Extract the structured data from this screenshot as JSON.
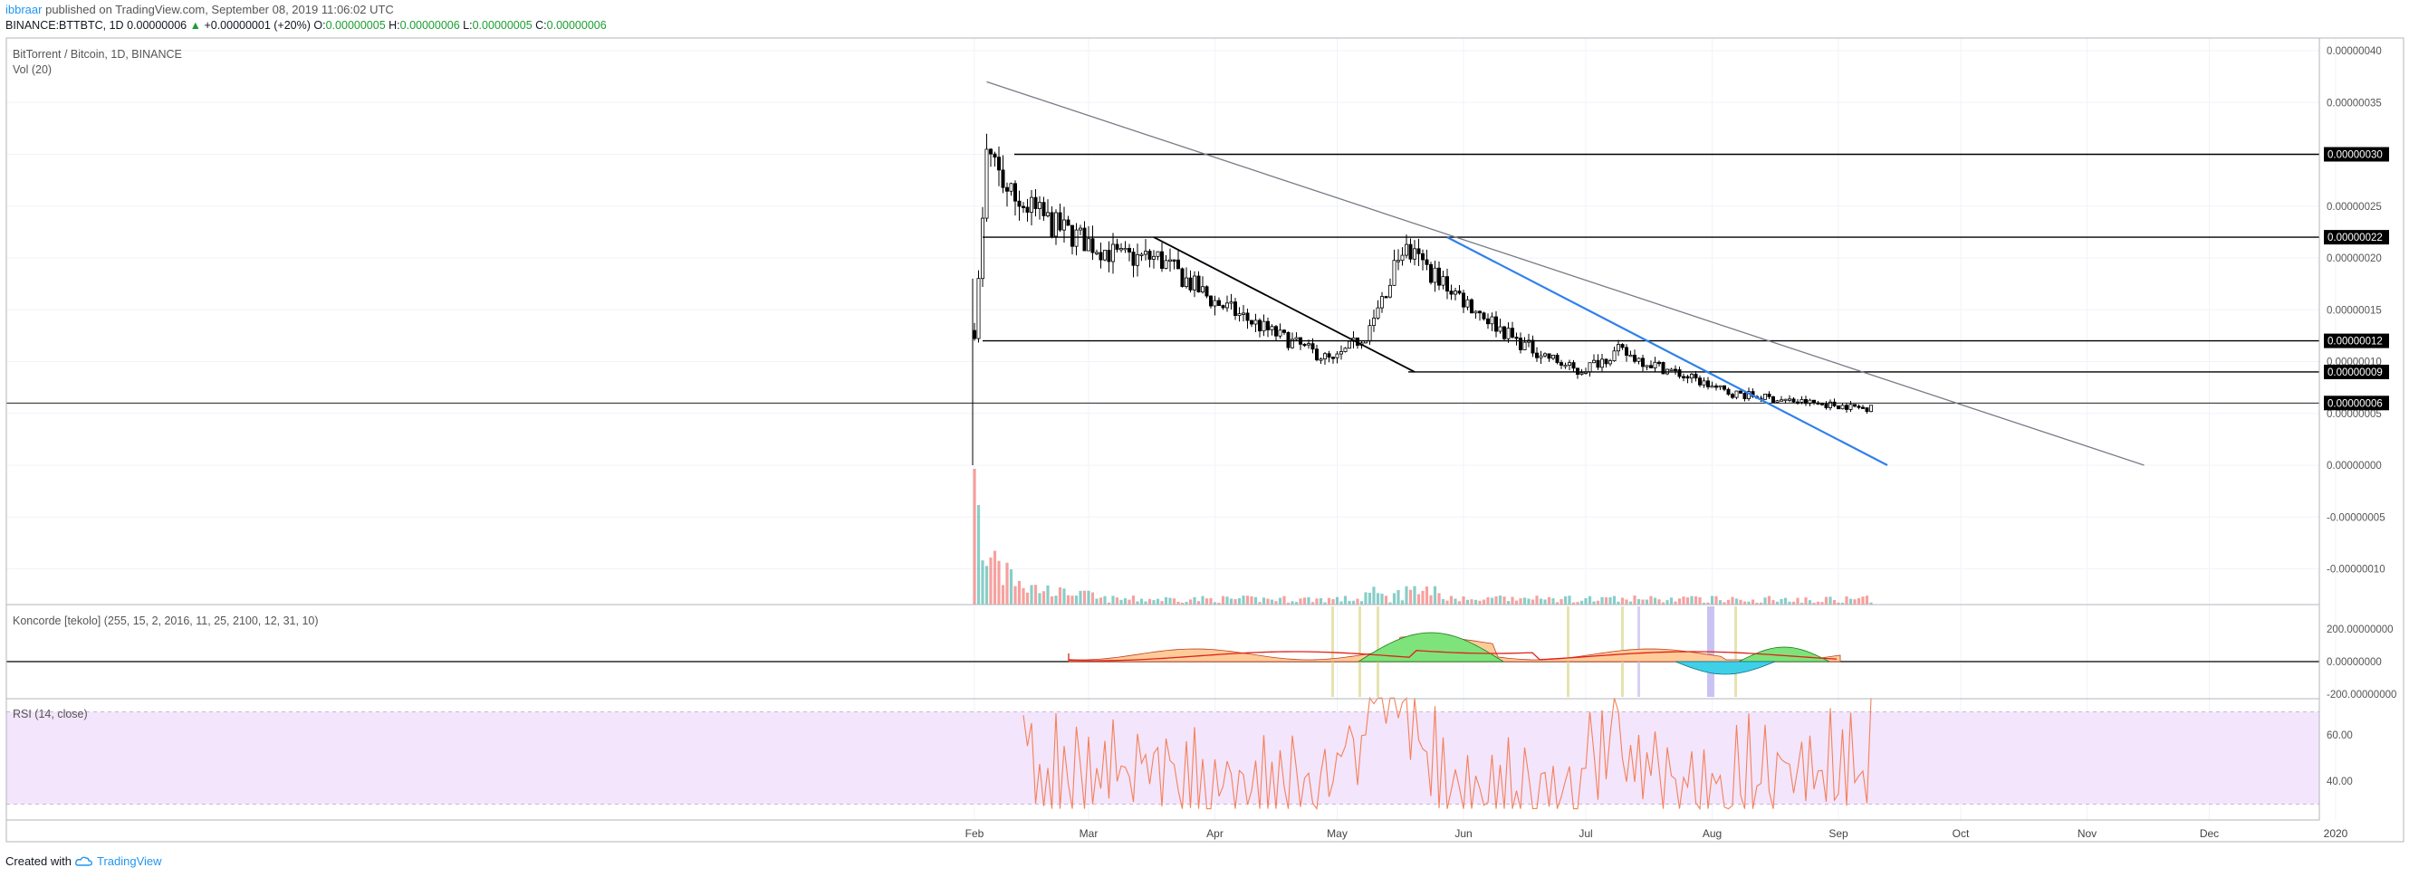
{
  "header": {
    "user": "ibbraar",
    "published_text": "published on TradingView.com, September 08, 2019 11:06:02 UTC",
    "symbol": "BINANCE:BTTBTC, 1D",
    "last": "0.00000006",
    "change_arrow": "▲",
    "change": "+0.00000001 (+20%)",
    "o_label": "O:",
    "o_value": "0.00000005",
    "h_label": "H:",
    "h_value": "0.00000006",
    "l_label": "L:",
    "l_value": "0.00000005",
    "c_label": "C:",
    "c_value": "0.00000006"
  },
  "panes": {
    "main_title": "BitTorrent / Bitcoin, 1D, BINANCE",
    "vol_title": "Vol (20)",
    "koncorde_title": "Koncorde [tekolo] (255, 15, 2, 2016, 11, 25, 2100, 12, 31, 10)",
    "rsi_title": "RSI (14, close)"
  },
  "footer": {
    "created_with": "Created with",
    "brand": "TradingView",
    "logo_icon": "tradingview-cloud-icon"
  },
  "colors": {
    "up": "#26a69a",
    "down": "#ef5350",
    "candle": "#000000",
    "blue_trend": "#2f80ed",
    "gray_trend": "#787b86",
    "rsi_line": "#f4805a",
    "rsi_band": "#f3e5fb",
    "konc_brown": "#ffcc99",
    "konc_green": "#7ee37a",
    "konc_blue": "#3fd0e8",
    "badge_bg": "#000000",
    "header_green": "#1b9e32",
    "brand_blue": "#2196f3"
  },
  "chart_data": [
    {
      "type": "candlestick",
      "title": "BitTorrent / Bitcoin, 1D, BINANCE",
      "price_axis_ticks": [
        "0.00000040",
        "0.00000035",
        "0.00000030",
        "0.00000025",
        "0.00000020",
        "0.00000015",
        "0.00000010",
        "0.00000005",
        "0.00000000",
        "-0.00000005",
        "-0.00000010"
      ],
      "x_axis_ticks": [
        "Feb",
        "Mar",
        "Apr",
        "May",
        "Jun",
        "Jul",
        "Aug",
        "Sep",
        "Oct",
        "Nov",
        "Dec",
        "2020"
      ],
      "series_ohlc_approx": [
        {
          "date": "2019-01-31",
          "o": 0.0,
          "h": 1.3e-07,
          "l": 6e-08,
          "c": 1.3e-07
        },
        {
          "date": "2019-02-04",
          "o": 1.8e-07,
          "h": 3.1e-07,
          "l": 1.7e-07,
          "c": 2.9e-07
        },
        {
          "date": "2019-02-10",
          "o": 2.8e-07,
          "h": 3.2e-07,
          "l": 2.3e-07,
          "c": 2.5e-07
        },
        {
          "date": "2019-03-01",
          "o": 2.1e-07,
          "h": 2.3e-07,
          "l": 1.9e-07,
          "c": 2e-07
        },
        {
          "date": "2019-04-01",
          "o": 1.7e-07,
          "h": 1.8e-07,
          "l": 1.5e-07,
          "c": 1.6e-07
        },
        {
          "date": "2019-05-01",
          "o": 1.1e-07,
          "h": 1.3e-07,
          "l": 1e-07,
          "c": 1.1e-07
        },
        {
          "date": "2019-05-29",
          "o": 2e-07,
          "h": 2.2e-07,
          "l": 1.7e-07,
          "c": 1.9e-07
        },
        {
          "date": "2019-07-01",
          "o": 1e-07,
          "h": 1.4e-07,
          "l": 9e-08,
          "c": 1e-07
        },
        {
          "date": "2019-08-01",
          "o": 7e-08,
          "h": 8e-08,
          "l": 6e-08,
          "c": 7e-08
        },
        {
          "date": "2019-09-08",
          "o": 5e-08,
          "h": 6e-08,
          "l": 5e-08,
          "c": 6e-08
        }
      ],
      "horizontal_levels": [
        {
          "value": 3e-07,
          "label": "0.00000030"
        },
        {
          "value": 2.2e-07,
          "label": "0.00000022"
        },
        {
          "value": 1.2e-07,
          "label": "0.00000012"
        },
        {
          "value": 9e-08,
          "label": "0.00000009"
        },
        {
          "value": 6e-08,
          "label": "0.00000006"
        }
      ],
      "trendlines": [
        {
          "color": "gray",
          "from": {
            "date": "2019-02-04",
            "value": 3.7e-07
          },
          "to": {
            "date": "2019-11-15",
            "value": 0.0
          }
        },
        {
          "color": "black",
          "from": {
            "date": "2019-03-17",
            "value": 2.2e-07
          },
          "to": {
            "date": "2019-05-20",
            "value": 9e-08
          }
        },
        {
          "color": "blue",
          "from": {
            "date": "2019-05-28",
            "value": 2.2e-07
          },
          "to": {
            "date": "2019-09-13",
            "value": 0.0
          }
        }
      ],
      "volume_note": "Vol (20) histogram overlaid at bottom of price pane, heavy spikes early Feb"
    },
    {
      "type": "area",
      "title": "Koncorde [tekolo] (255, 15, 2, 2016, 11, 25, 2100, 12, 31, 10)",
      "y_axis_ticks": [
        "200.00000000",
        "0.00000000",
        "-200.00000000"
      ]
    },
    {
      "type": "line",
      "title": "RSI (14, close)",
      "y_axis_ticks": [
        "60.00",
        "40.00"
      ],
      "band": [
        30,
        70
      ]
    }
  ]
}
